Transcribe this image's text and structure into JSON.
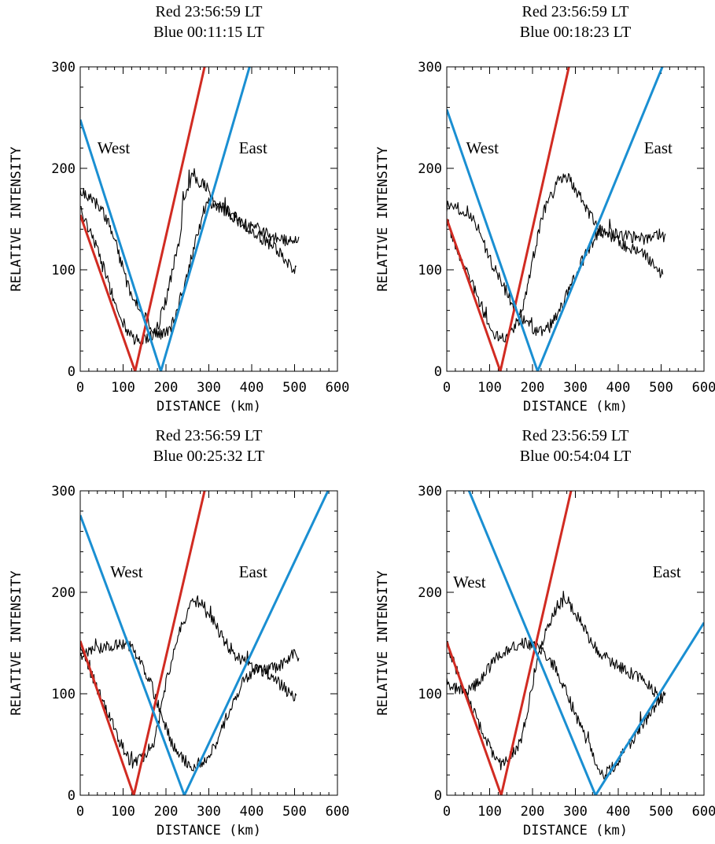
{
  "chart_data": [
    {
      "type": "line",
      "title_lines": [
        "Red  23:56:59 LT",
        "Blue 00:11:15 LT"
      ],
      "xlabel": "DISTANCE (km)",
      "ylabel": "RELATIVE INTENSITY",
      "xlim": [
        0,
        600
      ],
      "ylim": [
        0,
        300
      ],
      "xticks": [
        0,
        100,
        200,
        300,
        400,
        500,
        600
      ],
      "yticks": [
        0,
        100,
        200,
        300
      ],
      "xtick_labels": [
        "0",
        "100",
        "200",
        "300",
        "400",
        "500",
        "600"
      ],
      "ytick_labels": [
        "0",
        "100",
        "200",
        "300"
      ],
      "annotations": [
        {
          "text": "West",
          "x": 40,
          "y": 220
        },
        {
          "text": "East",
          "x": 370,
          "y": 220
        }
      ],
      "fit_lines": [
        {
          "color": "#d12b22",
          "points": [
            [
              0,
              154
            ],
            [
              128,
              0
            ],
            [
              290,
              300
            ]
          ]
        },
        {
          "color": "#1a8fd2",
          "points": [
            [
              0,
              248
            ],
            [
              188,
              0
            ],
            [
              395,
              300
            ]
          ]
        }
      ],
      "observed_series": [
        {
          "noise": 6,
          "points": [
            [
              0,
              160
            ],
            [
              30,
              132
            ],
            [
              60,
              95
            ],
            [
              90,
              55
            ],
            [
              110,
              40
            ],
            [
              128,
              30
            ],
            [
              160,
              34
            ],
            [
              175,
              36
            ],
            [
              200,
              70
            ],
            [
              235,
              140
            ],
            [
              240,
              172
            ],
            [
              260,
              190
            ],
            [
              290,
              183
            ],
            [
              320,
              166
            ],
            [
              350,
              155
            ],
            [
              380,
              145
            ],
            [
              410,
              135
            ],
            [
              450,
              123
            ],
            [
              480,
              110
            ],
            [
              505,
              97
            ]
          ]
        },
        {
          "noise": 6,
          "points": [
            [
              0,
              178
            ],
            [
              30,
              170
            ],
            [
              60,
              152
            ],
            [
              80,
              130
            ],
            [
              110,
              85
            ],
            [
              140,
              62
            ],
            [
              170,
              40
            ],
            [
              190,
              35
            ],
            [
              215,
              45
            ],
            [
              240,
              80
            ],
            [
              270,
              130
            ],
            [
              295,
              168
            ],
            [
              310,
              165
            ],
            [
              345,
              157
            ],
            [
              380,
              145
            ],
            [
              420,
              140
            ],
            [
              460,
              130
            ],
            [
              490,
              128
            ],
            [
              510,
              127
            ]
          ]
        }
      ]
    },
    {
      "type": "line",
      "title_lines": [
        "Red  23:56:59 LT",
        "Blue 00:18:23 LT"
      ],
      "xlabel": "DISTANCE (km)",
      "ylabel": "RELATIVE INTENSITY",
      "xlim": [
        0,
        600
      ],
      "ylim": [
        0,
        300
      ],
      "xticks": [
        0,
        100,
        200,
        300,
        400,
        500,
        600
      ],
      "yticks": [
        0,
        100,
        200,
        300
      ],
      "xtick_labels": [
        "0",
        "100",
        "200",
        "300",
        "400",
        "500",
        "600"
      ],
      "ytick_labels": [
        "0",
        "100",
        "200",
        "300"
      ],
      "annotations": [
        {
          "text": "West",
          "x": 45,
          "y": 220
        },
        {
          "text": "East",
          "x": 460,
          "y": 220
        }
      ],
      "fit_lines": [
        {
          "color": "#d12b22",
          "points": [
            [
              0,
              150
            ],
            [
              125,
              0
            ],
            [
              285,
              300
            ]
          ]
        },
        {
          "color": "#1a8fd2",
          "points": [
            [
              0,
              258
            ],
            [
              212,
              0
            ],
            [
              503,
              300
            ]
          ]
        }
      ],
      "observed_series": [
        {
          "noise": 6,
          "points": [
            [
              0,
              148
            ],
            [
              30,
              115
            ],
            [
              60,
              85
            ],
            [
              90,
              55
            ],
            [
              110,
              38
            ],
            [
              125,
              30
            ],
            [
              150,
              38
            ],
            [
              175,
              55
            ],
            [
              200,
              110
            ],
            [
              225,
              155
            ],
            [
              245,
              176
            ],
            [
              260,
              188
            ],
            [
              280,
              192
            ],
            [
              300,
              180
            ],
            [
              325,
              160
            ],
            [
              355,
              140
            ],
            [
              390,
              130
            ],
            [
              420,
              123
            ],
            [
              460,
              115
            ],
            [
              490,
              100
            ],
            [
              505,
              95
            ]
          ]
        },
        {
          "noise": 6,
          "points": [
            [
              0,
              163
            ],
            [
              30,
              160
            ],
            [
              60,
              153
            ],
            [
              80,
              135
            ],
            [
              100,
              110
            ],
            [
              130,
              85
            ],
            [
              160,
              62
            ],
            [
              185,
              48
            ],
            [
              210,
              38
            ],
            [
              240,
              44
            ],
            [
              270,
              65
            ],
            [
              300,
              95
            ],
            [
              330,
              120
            ],
            [
              355,
              138
            ],
            [
              380,
              137
            ],
            [
              420,
              133
            ],
            [
              460,
              130
            ],
            [
              490,
              133
            ],
            [
              510,
              133
            ]
          ]
        }
      ]
    },
    {
      "type": "line",
      "title_lines": [
        "Red  23:56:59 LT",
        "Blue 00:25:32 LT"
      ],
      "xlabel": "DISTANCE (km)",
      "ylabel": "RELATIVE INTENSITY",
      "xlim": [
        0,
        600
      ],
      "ylim": [
        0,
        300
      ],
      "xticks": [
        0,
        100,
        200,
        300,
        400,
        500,
        600
      ],
      "yticks": [
        0,
        100,
        200,
        300
      ],
      "xtick_labels": [
        "0",
        "100",
        "200",
        "300",
        "400",
        "500",
        "600"
      ],
      "ytick_labels": [
        "0",
        "100",
        "200",
        "300"
      ],
      "annotations": [
        {
          "text": "West",
          "x": 70,
          "y": 220
        },
        {
          "text": "East",
          "x": 370,
          "y": 220
        }
      ],
      "fit_lines": [
        {
          "color": "#d12b22",
          "points": [
            [
              0,
              152
            ],
            [
              125,
              0
            ],
            [
              290,
              300
            ]
          ]
        },
        {
          "color": "#1a8fd2",
          "points": [
            [
              0,
              276
            ],
            [
              243,
              0
            ],
            [
              578,
              300
            ]
          ]
        }
      ],
      "observed_series": [
        {
          "noise": 6,
          "points": [
            [
              0,
              148
            ],
            [
              30,
              115
            ],
            [
              60,
              85
            ],
            [
              90,
              55
            ],
            [
              110,
              38
            ],
            [
              125,
              30
            ],
            [
              150,
              38
            ],
            [
              175,
              55
            ],
            [
              200,
              110
            ],
            [
              225,
              155
            ],
            [
              245,
              176
            ],
            [
              260,
              188
            ],
            [
              280,
              192
            ],
            [
              300,
              180
            ],
            [
              325,
              160
            ],
            [
              355,
              140
            ],
            [
              390,
              130
            ],
            [
              420,
              123
            ],
            [
              460,
              112
            ],
            [
              490,
              100
            ],
            [
              505,
              95
            ]
          ]
        },
        {
          "noise": 6,
          "points": [
            [
              0,
              138
            ],
            [
              40,
              143
            ],
            [
              80,
              148
            ],
            [
              110,
              150
            ],
            [
              130,
              138
            ],
            [
              160,
              115
            ],
            [
              190,
              80
            ],
            [
              215,
              50
            ],
            [
              240,
              35
            ],
            [
              265,
              28
            ],
            [
              290,
              35
            ],
            [
              315,
              50
            ],
            [
              340,
              75
            ],
            [
              360,
              95
            ],
            [
              380,
              112
            ],
            [
              410,
              125
            ],
            [
              440,
              125
            ],
            [
              470,
              128
            ],
            [
              500,
              140
            ],
            [
              510,
              135
            ]
          ]
        }
      ]
    },
    {
      "type": "line",
      "title_lines": [
        "Red  23:56:59 LT",
        "Blue 00:54:04 LT"
      ],
      "xlabel": "DISTANCE (km)",
      "ylabel": "RELATIVE INTENSITY",
      "xlim": [
        0,
        600
      ],
      "ylim": [
        0,
        300
      ],
      "xticks": [
        0,
        100,
        200,
        300,
        400,
        500,
        600
      ],
      "yticks": [
        0,
        100,
        200,
        300
      ],
      "xtick_labels": [
        "0",
        "100",
        "200",
        "300",
        "400",
        "500",
        "600"
      ],
      "ytick_labels": [
        "0",
        "100",
        "200",
        "300"
      ],
      "annotations": [
        {
          "text": "West",
          "x": 15,
          "y": 210
        },
        {
          "text": "East",
          "x": 480,
          "y": 220
        }
      ],
      "fit_lines": [
        {
          "color": "#d12b22",
          "points": [
            [
              0,
              151
            ],
            [
              127,
              0
            ],
            [
              290,
              300
            ]
          ]
        },
        {
          "color": "#1a8fd2",
          "points": [
            [
              52,
              300
            ],
            [
              347,
              0
            ],
            [
              600,
              170
            ]
          ]
        }
      ],
      "observed_series": [
        {
          "noise": 6,
          "points": [
            [
              0,
              148
            ],
            [
              30,
              115
            ],
            [
              60,
              85
            ],
            [
              90,
              55
            ],
            [
              110,
              38
            ],
            [
              125,
              30
            ],
            [
              150,
              38
            ],
            [
              175,
              55
            ],
            [
              200,
              110
            ],
            [
              225,
              155
            ],
            [
              245,
              176
            ],
            [
              260,
              188
            ],
            [
              280,
              192
            ],
            [
              300,
              180
            ],
            [
              325,
              160
            ],
            [
              355,
              140
            ],
            [
              390,
              130
            ],
            [
              420,
              123
            ],
            [
              460,
              112
            ],
            [
              490,
              100
            ],
            [
              505,
              95
            ]
          ]
        },
        {
          "noise": 6,
          "points": [
            [
              0,
              112
            ],
            [
              30,
              103
            ],
            [
              60,
              105
            ],
            [
              90,
              120
            ],
            [
              120,
              138
            ],
            [
              150,
              145
            ],
            [
              180,
              150
            ],
            [
              210,
              148
            ],
            [
              230,
              140
            ],
            [
              255,
              125
            ],
            [
              280,
              100
            ],
            [
              305,
              75
            ],
            [
              330,
              50
            ],
            [
              350,
              30
            ],
            [
              365,
              20
            ],
            [
              390,
              28
            ],
            [
              410,
              42
            ],
            [
              440,
              58
            ],
            [
              470,
              78
            ],
            [
              500,
              97
            ],
            [
              510,
              97
            ]
          ]
        }
      ]
    }
  ]
}
